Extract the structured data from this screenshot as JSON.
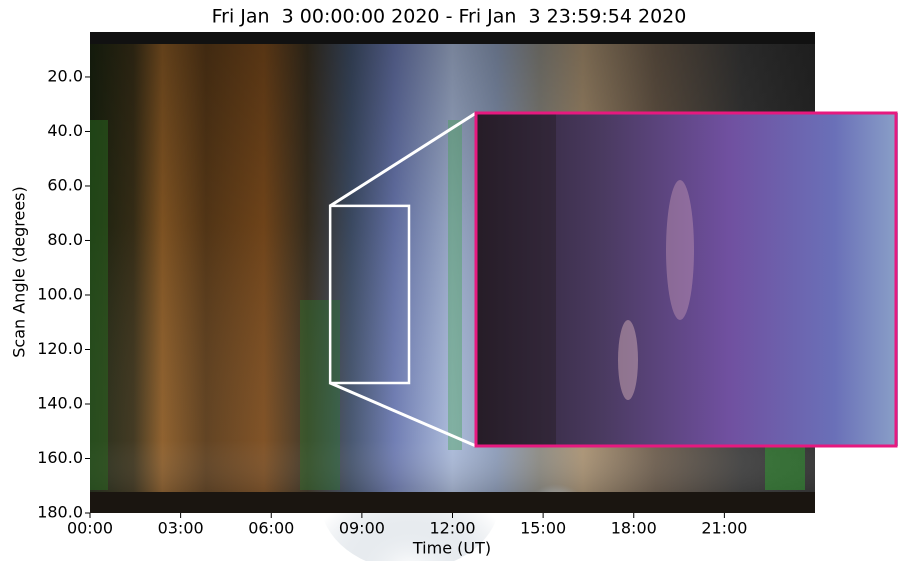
{
  "chart_data": {
    "type": "keogram",
    "title": "Fri Jan  3 00:00:00 2020 - Fri Jan  3 23:59:54 2020",
    "x_label": "Time (UT)",
    "y_label": "Scan Angle (degrees)",
    "xlim": [
      0,
      24
    ],
    "xticks": [
      {
        "value": 0,
        "label": "00:00"
      },
      {
        "value": 3,
        "label": "03:00"
      },
      {
        "value": 6,
        "label": "06:00"
      },
      {
        "value": 9,
        "label": "09:00"
      },
      {
        "value": 12,
        "label": "12:00"
      },
      {
        "value": 15,
        "label": "15:00"
      },
      {
        "value": 18,
        "label": "18:00"
      },
      {
        "value": 21,
        "label": "21:00"
      }
    ],
    "ylim": [
      3.5,
      180
    ],
    "invert_y": true,
    "yticks": [
      {
        "value": 20,
        "label": "20.0"
      },
      {
        "value": 40,
        "label": "40.0"
      },
      {
        "value": 60,
        "label": "60.0"
      },
      {
        "value": 80,
        "label": "80.0"
      },
      {
        "value": 100,
        "label": "100.0"
      },
      {
        "value": 120,
        "label": "120.0"
      },
      {
        "value": 140,
        "label": "140.0"
      },
      {
        "value": 160,
        "label": "160.0"
      },
      {
        "value": 180,
        "label": "180.0"
      }
    ],
    "zoom_box": {
      "x": [
        7.95,
        10.56
      ],
      "y": [
        67.3,
        132.3
      ],
      "color": "#ffffff"
    },
    "inset_border_color": "#e6197f"
  }
}
